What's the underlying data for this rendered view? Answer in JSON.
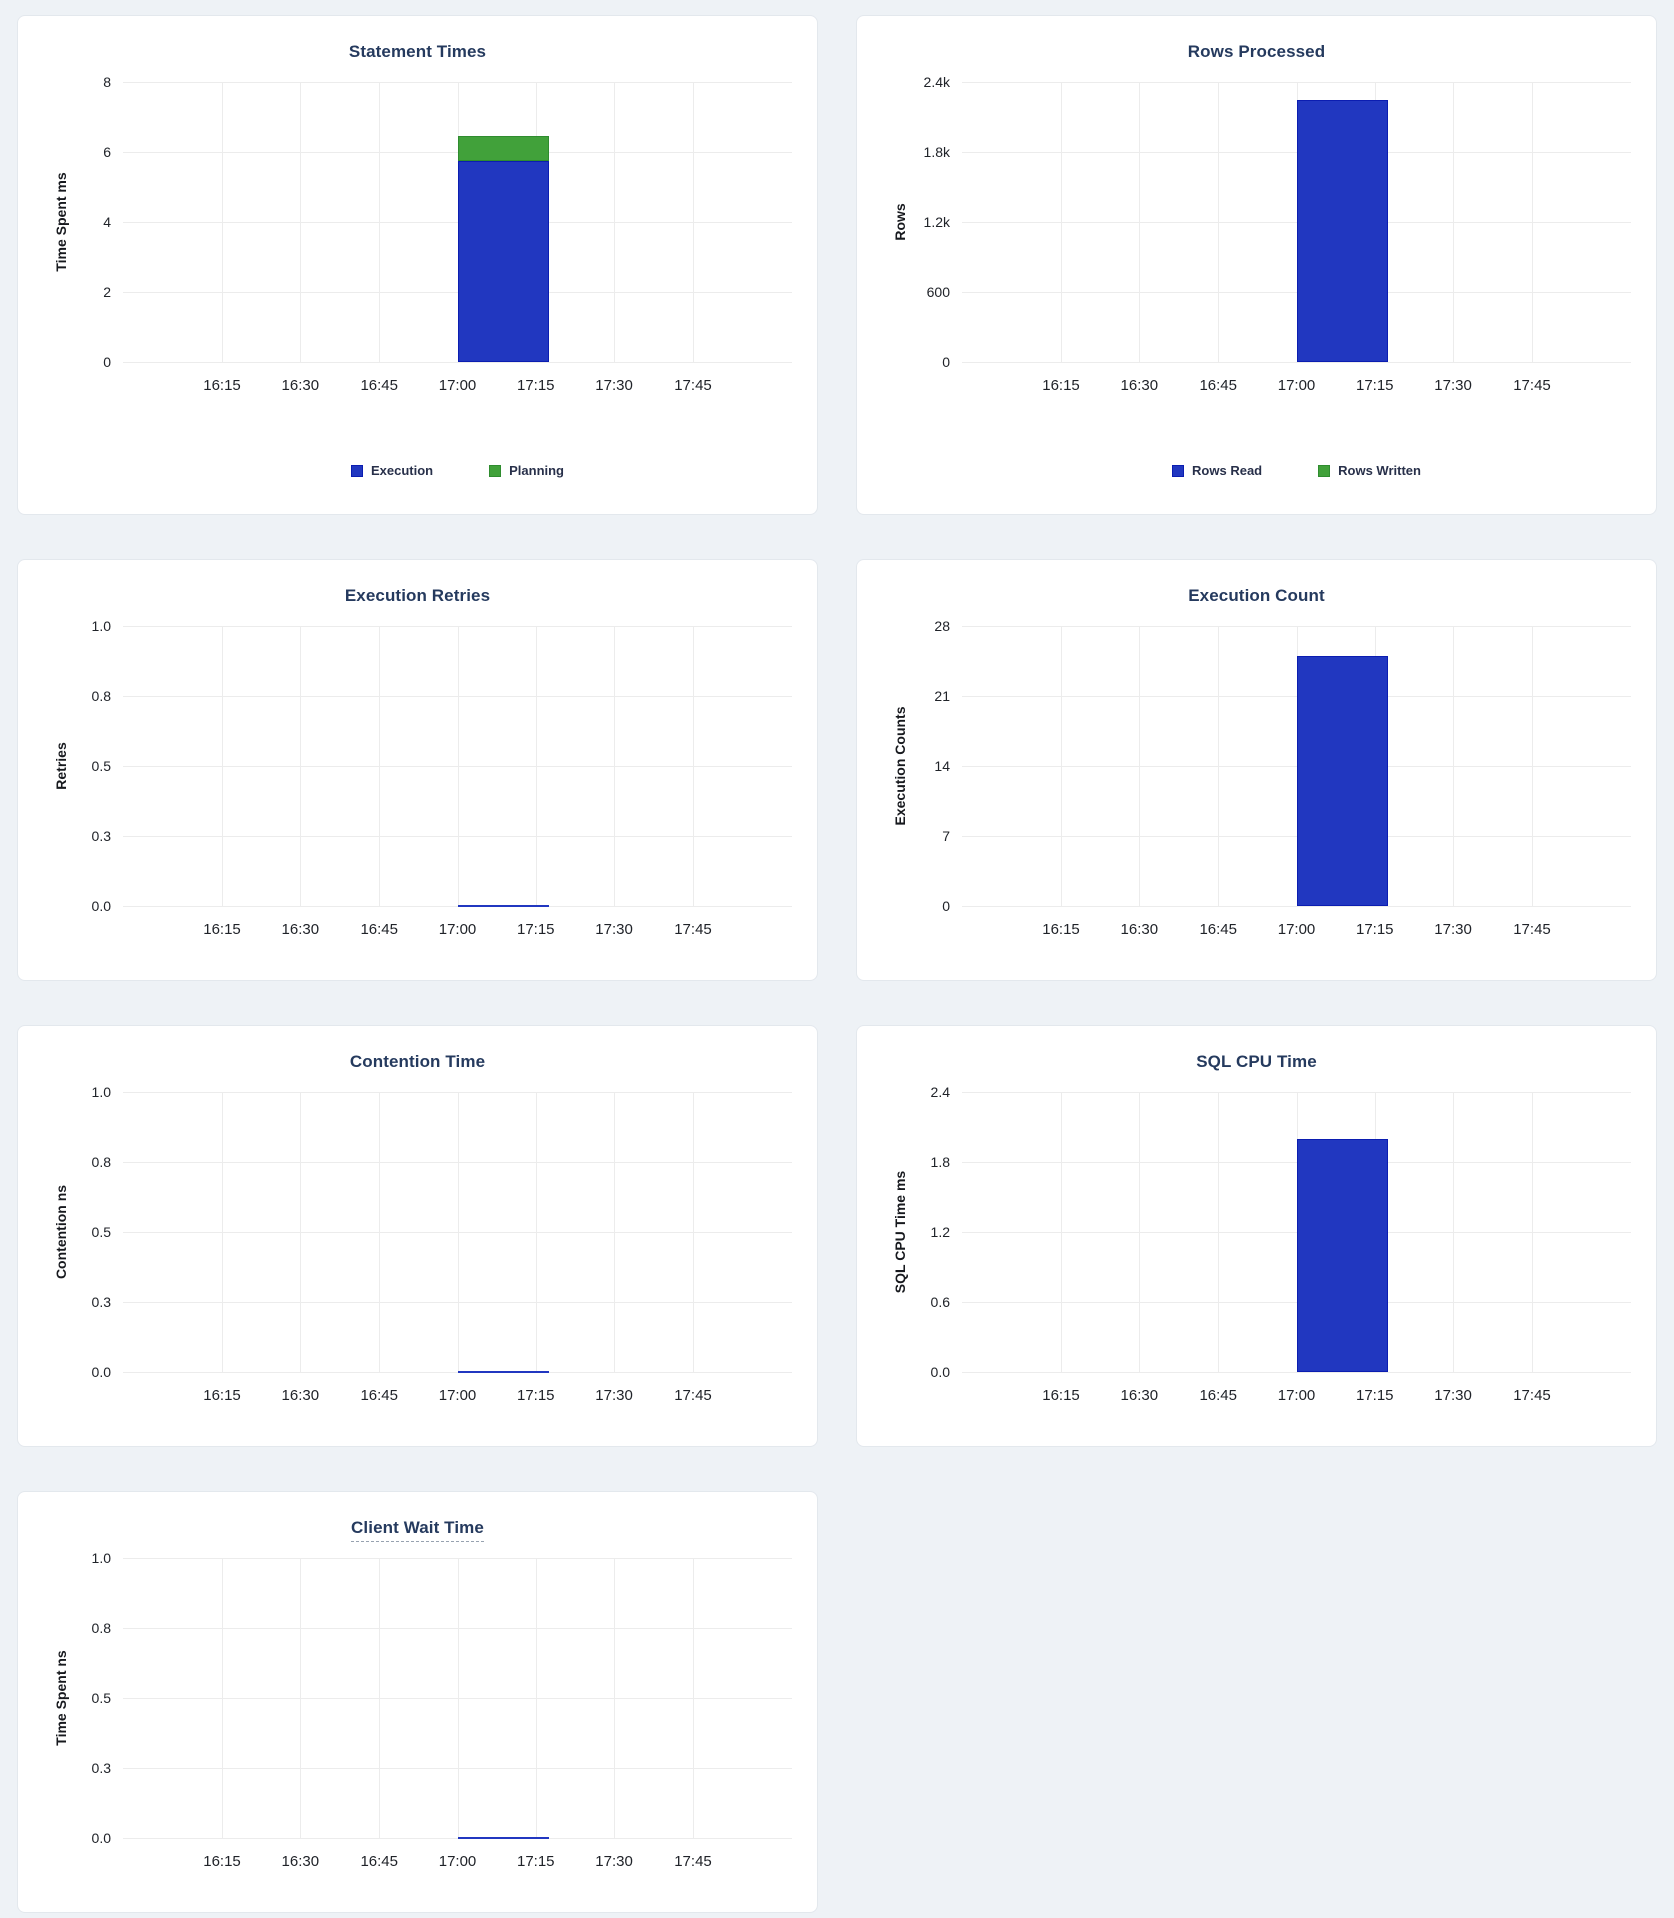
{
  "page": {
    "background": "#eef2f6",
    "card_background": "#ffffff",
    "card_border": "#e3e8ed"
  },
  "colors": {
    "title_text": "#253a5e",
    "axis_text": "#202329",
    "gridline": "#ececec",
    "legend_text": "#28304a"
  },
  "series_colors": {
    "blue": {
      "fill": "#2137c0",
      "border": "#0b1db1"
    },
    "green": {
      "fill": "#41a13a",
      "border": "#2f8c2f"
    }
  },
  "axes": {
    "x_tick_labels": [
      "16:15",
      "16:30",
      "16:45",
      "17:00",
      "17:15",
      "17:30",
      "17:45"
    ]
  },
  "layout_hints": {
    "x_tick_percents": [
      14.8,
      26.5,
      38.3,
      50.0,
      61.7,
      73.4,
      85.2
    ],
    "bar_left_percent": 50.0,
    "bar_width_percent": 13.7,
    "y_tick_percents": [
      0,
      25,
      50,
      75,
      100
    ],
    "grid": true,
    "legend_position": "bottom-center"
  },
  "chart_data": [
    {
      "type": "bar",
      "stacked": true,
      "title": "Statement Times",
      "ylabel": "Time Spent ms",
      "ylim": [
        0,
        8
      ],
      "ytick_labels": [
        "8",
        "6",
        "4",
        "2",
        "0"
      ],
      "x_bucket": {
        "from": "17:00",
        "to": "17:17"
      },
      "series": [
        {
          "name": "Execution",
          "color": "blue",
          "value": 5.75
        },
        {
          "name": "Planning",
          "color": "green",
          "value": 0.7
        }
      ],
      "legend": [
        {
          "label": "Execution",
          "color": "blue"
        },
        {
          "label": "Planning",
          "color": "green"
        }
      ],
      "title_dashed_underline": false
    },
    {
      "type": "bar",
      "stacked": true,
      "title": "Rows Processed",
      "ylabel": "Rows",
      "ylim": [
        0,
        2400
      ],
      "ytick_labels": [
        "2.4k",
        "1.8k",
        "1.2k",
        "600",
        "0"
      ],
      "x_bucket": {
        "from": "17:00",
        "to": "17:17"
      },
      "series": [
        {
          "name": "Rows Read",
          "color": "blue",
          "value": 2250
        },
        {
          "name": "Rows Written",
          "color": "green",
          "value": 0
        }
      ],
      "legend": [
        {
          "label": "Rows Read",
          "color": "blue"
        },
        {
          "label": "Rows Written",
          "color": "green"
        }
      ],
      "title_dashed_underline": false
    },
    {
      "type": "line",
      "title": "Execution Retries",
      "ylabel": "Retries",
      "ylim": [
        0,
        1
      ],
      "ytick_labels": [
        "1.0",
        "0.8",
        "0.5",
        "0.3",
        "0.0"
      ],
      "series": [
        {
          "name": "Retries",
          "color": "blue",
          "points": [
            {
              "x": "17:00",
              "y": 0
            },
            {
              "x": "17:17",
              "y": 0
            }
          ]
        }
      ],
      "legend": null,
      "title_dashed_underline": false
    },
    {
      "type": "bar",
      "stacked": false,
      "title": "Execution Count",
      "ylabel": "Execution Counts",
      "ylim": [
        0,
        28
      ],
      "ytick_labels": [
        "28",
        "21",
        "14",
        "7",
        "0"
      ],
      "x_bucket": {
        "from": "17:00",
        "to": "17:17"
      },
      "series": [
        {
          "name": "Execution Count",
          "color": "blue",
          "value": 25
        }
      ],
      "legend": null,
      "title_dashed_underline": false
    },
    {
      "type": "line",
      "title": "Contention Time",
      "ylabel": "Contention ns",
      "ylim": [
        0,
        1
      ],
      "ytick_labels": [
        "1.0",
        "0.8",
        "0.5",
        "0.3",
        "0.0"
      ],
      "series": [
        {
          "name": "Contention",
          "color": "blue",
          "points": [
            {
              "x": "17:00",
              "y": 0
            },
            {
              "x": "17:17",
              "y": 0
            }
          ]
        }
      ],
      "legend": null,
      "title_dashed_underline": false
    },
    {
      "type": "bar",
      "stacked": false,
      "title": "SQL CPU Time",
      "ylabel": "SQL CPU Time ms",
      "ylim": [
        0,
        2.4
      ],
      "ytick_labels": [
        "2.4",
        "1.8",
        "1.2",
        "0.6",
        "0.0"
      ],
      "x_bucket": {
        "from": "17:00",
        "to": "17:17"
      },
      "series": [
        {
          "name": "SQL CPU Time",
          "color": "blue",
          "value": 2.0
        }
      ],
      "legend": null,
      "title_dashed_underline": false
    },
    {
      "type": "line",
      "title": "Client Wait Time",
      "ylabel": "Time Spent ns",
      "ylim": [
        0,
        1
      ],
      "ytick_labels": [
        "1.0",
        "0.8",
        "0.5",
        "0.3",
        "0.0"
      ],
      "series": [
        {
          "name": "Client Wait Time",
          "color": "blue",
          "points": [
            {
              "x": "17:00",
              "y": 0
            },
            {
              "x": "17:17",
              "y": 0
            }
          ]
        }
      ],
      "legend": null,
      "title_dashed_underline": true
    }
  ]
}
